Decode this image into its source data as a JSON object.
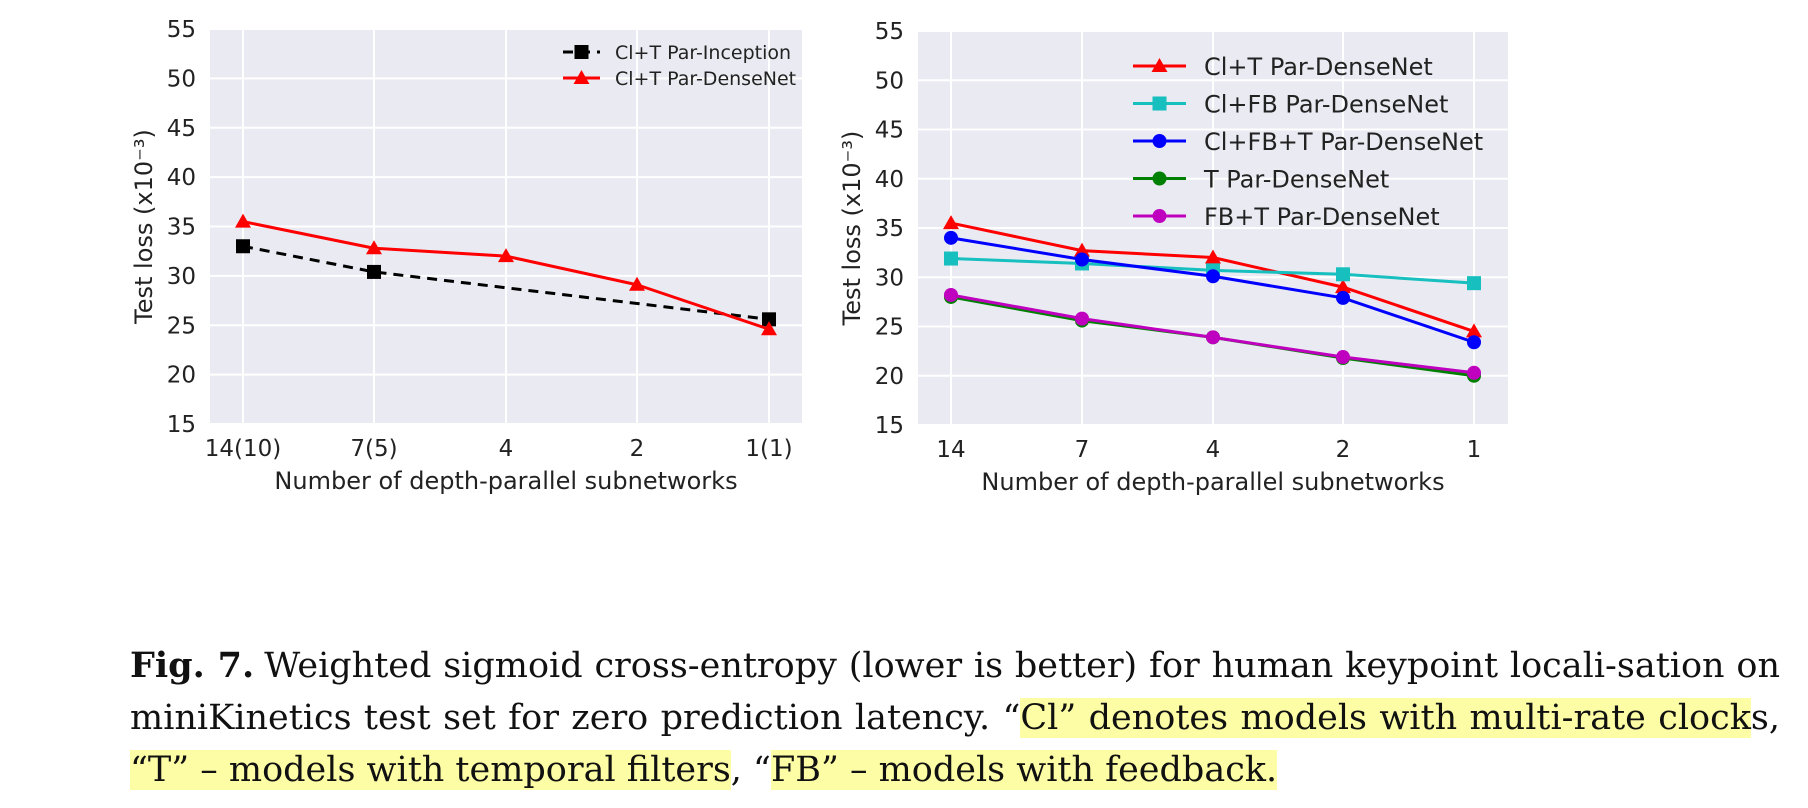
{
  "chart_data": [
    {
      "type": "line",
      "title": "",
      "xlabel": "Number of depth-parallel subnetworks",
      "ylabel": "Test loss (x10⁻³)",
      "categories": [
        "14(10)",
        "7(5)",
        "4",
        "2",
        "1(1)"
      ],
      "ylim": [
        15,
        55
      ],
      "yticks": [
        15,
        20,
        25,
        30,
        35,
        40,
        45,
        50,
        55
      ],
      "grid": true,
      "legend_position": "top-right",
      "series": [
        {
          "name": "Cl+T Par-Inception",
          "color": "#000000",
          "marker": "square",
          "dashed": true,
          "points": [
            [
              0,
              33
            ],
            [
              1,
              30.4
            ],
            [
              4,
              25.6
            ]
          ]
        },
        {
          "name": "Cl+T Par-DenseNet",
          "color": "#ff0000",
          "marker": "triangle",
          "dashed": false,
          "points": [
            [
              0,
              35.5
            ],
            [
              1,
              32.8
            ],
            [
              2,
              32
            ],
            [
              3,
              29.1
            ],
            [
              4,
              24.6
            ]
          ]
        }
      ]
    },
    {
      "type": "line",
      "title": "",
      "xlabel": "Number of depth-parallel subnetworks",
      "ylabel": "Test loss (x10⁻³)",
      "categories": [
        "14",
        "7",
        "4",
        "2",
        "1"
      ],
      "ylim": [
        15,
        55
      ],
      "yticks": [
        15,
        20,
        25,
        30,
        35,
        40,
        45,
        50,
        55
      ],
      "grid": true,
      "legend_position": "top-right",
      "series": [
        {
          "name": "Cl+T Par-DenseNet",
          "color": "#ff0000",
          "marker": "triangle",
          "dashed": false,
          "points": [
            [
              0,
              35.5
            ],
            [
              1,
              32.7
            ],
            [
              2,
              32
            ],
            [
              3,
              29
            ],
            [
              4,
              24.5
            ]
          ]
        },
        {
          "name": "Cl+FB Par-DenseNet",
          "color": "#17bfbf",
          "marker": "square",
          "dashed": false,
          "points": [
            [
              0,
              31.9
            ],
            [
              1,
              31.4
            ],
            [
              2,
              30.7
            ],
            [
              3,
              30.3
            ],
            [
              4,
              29.4
            ]
          ]
        },
        {
          "name": "Cl+FB+T Par-DenseNet",
          "color": "#0000ff",
          "marker": "circle",
          "dashed": false,
          "points": [
            [
              0,
              34
            ],
            [
              1,
              31.8
            ],
            [
              2,
              30.1
            ],
            [
              3,
              27.9
            ],
            [
              4,
              23.4
            ]
          ]
        },
        {
          "name": "T Par-DenseNet",
          "color": "#008000",
          "marker": "circle",
          "dashed": false,
          "points": [
            [
              0,
              28
            ],
            [
              1,
              25.6
            ],
            [
              2,
              23.9
            ],
            [
              3,
              21.8
            ],
            [
              4,
              20
            ]
          ]
        },
        {
          "name": "FB+T Par-DenseNet",
          "color": "#bf00bf",
          "marker": "circle",
          "dashed": false,
          "points": [
            [
              0,
              28.2
            ],
            [
              1,
              25.8
            ],
            [
              2,
              23.9
            ],
            [
              3,
              21.9
            ],
            [
              4,
              20.3
            ]
          ]
        }
      ]
    }
  ],
  "caption": {
    "label": "Fig. 7.",
    "text_plain": "Weighted sigmoid cross-entropy (lower is better) for human keypoint locali-sation on miniKinetics test set for zero prediction latency. “",
    "hl1": "Cl” denotes models with multi-rate clock",
    "plain2": "s, ",
    "hl2": "“T” – models with temporal filters",
    "plain3": ", “",
    "hl3": "FB” – models with feedback."
  }
}
